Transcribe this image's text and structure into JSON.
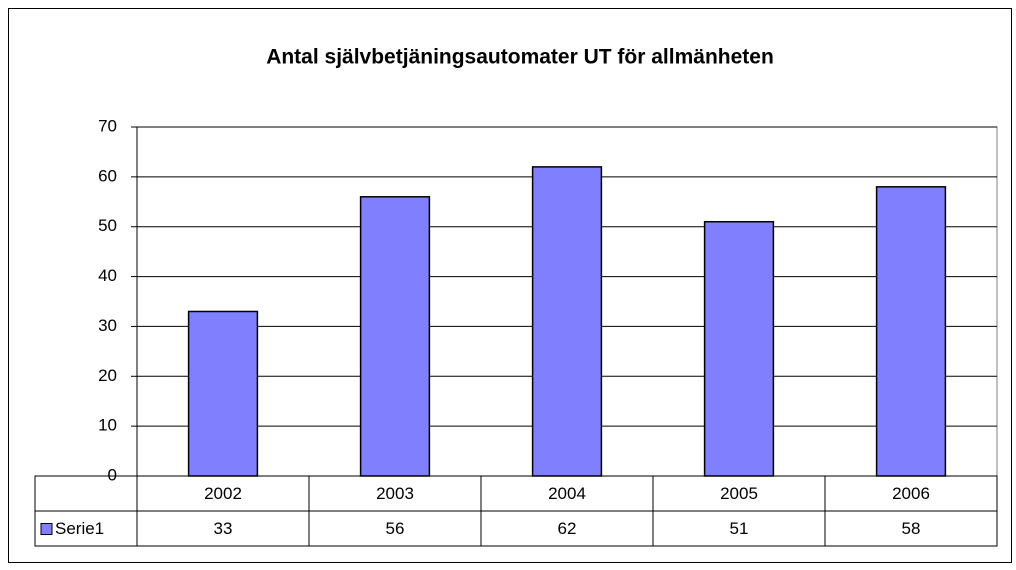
{
  "chart_data": {
    "type": "bar",
    "title": "Antal självbetjäningsautomater UT för allmänheten",
    "categories": [
      "2002",
      "2003",
      "2004",
      "2005",
      "2006"
    ],
    "series": [
      {
        "name": "Serie1",
        "color": "#8080ff",
        "values": [
          33,
          56,
          62,
          51,
          58
        ]
      }
    ],
    "ylim": [
      0,
      70
    ],
    "yticks": [
      0,
      10,
      20,
      30,
      40,
      50,
      60,
      70
    ],
    "grid": true,
    "data_table": true
  }
}
